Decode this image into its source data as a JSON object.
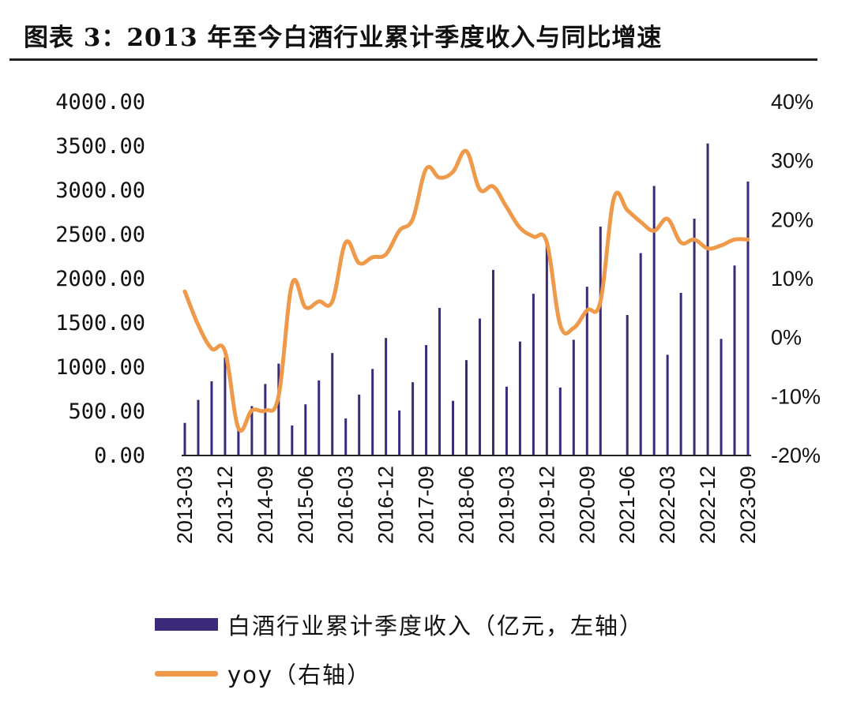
{
  "page_title": "图表 3：2013 年至今白酒行业累计季度收入与同比增速",
  "chart_data": {
    "type": "bar+line",
    "title": "图表 3：2013 年至今白酒行业累计季度收入与同比增速",
    "left_axis": {
      "ticks": [
        "0.00",
        "500.00",
        "1000.00",
        "1500.00",
        "2000.00",
        "2500.00",
        "3000.00",
        "3500.00",
        "4000.00"
      ],
      "ylim": [
        0,
        4000
      ]
    },
    "right_axis": {
      "ticks": [
        "-20%",
        "-10%",
        "0%",
        "10%",
        "20%",
        "30%",
        "40%"
      ],
      "ylim": [
        -20,
        40
      ]
    },
    "x_tick_labels": [
      "2013-03",
      "2013-12",
      "2014-09",
      "2015-06",
      "2016-03",
      "2016-12",
      "2017-09",
      "2018-06",
      "2019-03",
      "2019-12",
      "2020-09",
      "2021-06",
      "2022-03",
      "2022-12",
      "2023-09"
    ],
    "quarters": [
      "2013-03",
      "2013-06",
      "2013-09",
      "2013-12",
      "2014-03",
      "2014-06",
      "2014-09",
      "2014-12",
      "2015-03",
      "2015-06",
      "2015-09",
      "2015-12",
      "2016-03",
      "2016-06",
      "2016-09",
      "2016-12",
      "2017-03",
      "2017-06",
      "2017-09",
      "2017-12",
      "2018-03",
      "2018-06",
      "2018-09",
      "2018-12",
      "2019-03",
      "2019-06",
      "2019-09",
      "2019-12",
      "2020-03",
      "2020-06",
      "2020-09",
      "2020-12",
      "2021-03",
      "2021-06",
      "2021-09",
      "2021-12",
      "2022-03",
      "2022-06",
      "2022-09",
      "2022-12",
      "2023-03",
      "2023-06",
      "2023-09"
    ],
    "series": [
      {
        "name": "白酒行业累计季度收入（亿元，左轴）",
        "axis": "left",
        "type": "bar",
        "color": "#3b2a7a",
        "values": [
          360,
          620,
          830,
          1100,
          300,
          550,
          800,
          1030,
          330,
          570,
          840,
          1150,
          410,
          680,
          970,
          1320,
          500,
          820,
          1240,
          1660,
          610,
          1070,
          1540,
          2090,
          770,
          1280,
          1820,
          2380,
          760,
          1300,
          1900,
          2580,
          0,
          1580,
          2280,
          3040,
          1130,
          1830,
          2670,
          3520,
          1310,
          2140,
          3090
        ]
      },
      {
        "name": "yoy（右轴）",
        "axis": "right",
        "type": "line",
        "color": "#ef9a4a",
        "values": [
          7.7,
          2,
          -2,
          -2.5,
          -15.5,
          -12.5,
          -12.5,
          -10,
          9,
          5,
          6,
          6,
          16,
          12.5,
          13.5,
          14,
          18,
          20,
          28.5,
          27,
          28,
          31.5,
          25,
          25.5,
          22,
          18.5,
          17,
          16,
          2,
          1.5,
          4.5,
          6,
          23.5,
          21.5,
          19.5,
          18,
          20,
          16,
          16.5,
          15,
          15.5,
          16.5,
          16.5
        ]
      }
    ]
  },
  "legend": {
    "bar_label": "白酒行业累计季度收入（亿元，左轴）",
    "line_label": "yoy（右轴）"
  }
}
